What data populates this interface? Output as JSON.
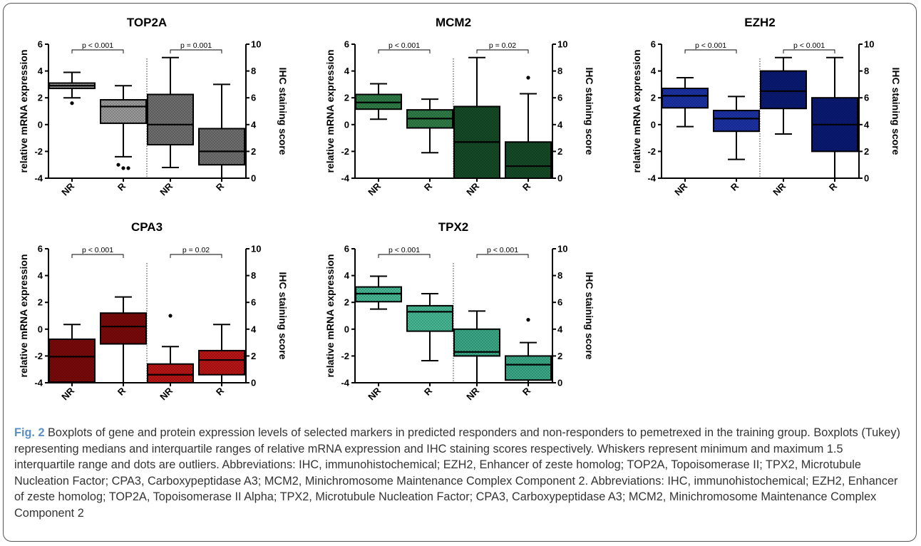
{
  "chart_data": [
    {
      "type": "box",
      "title": "TOP2A",
      "color": "#7a7a7a",
      "pattern_left": "#9a9a9a",
      "pattern_right": "#6e6e6e",
      "ylabel_left": "relative mRNA expression",
      "ylabel_right": "IHC staining score",
      "ylim_left": [
        -4,
        6
      ],
      "ylim_right": [
        0,
        10
      ],
      "yticks_left": [
        "-4",
        "-2",
        "0",
        "2",
        "4",
        "6"
      ],
      "yticks_right": [
        "0",
        "2",
        "4",
        "6",
        "8",
        "10"
      ],
      "categories": [
        "NR",
        "R",
        "NR",
        "R"
      ],
      "pvalues": [
        "p < 0.001",
        "p = 0.001"
      ],
      "boxes": [
        {
          "axis": "left",
          "min": 2.0,
          "q1": 2.7,
          "median": 2.9,
          "q3": 3.1,
          "max": 3.9,
          "outliers": [
            1.6
          ]
        },
        {
          "axis": "left",
          "min": -2.4,
          "q1": 0.1,
          "median": 1.35,
          "q3": 1.85,
          "max": 2.9,
          "outliers": [
            -3.0,
            -3.25,
            -3.25
          ]
        },
        {
          "axis": "right",
          "min": 0.8,
          "q1": 2.5,
          "median": 4.0,
          "q3": 6.25,
          "max": 9.0,
          "outliers": []
        },
        {
          "axis": "right",
          "min": 0.0,
          "q1": 1.0,
          "median": 2.0,
          "q3": 3.7,
          "max": 7.0,
          "outliers": []
        }
      ]
    },
    {
      "type": "box",
      "title": "MCM2",
      "color": "#1a5e32",
      "pattern_left": "#2f7c47",
      "pattern_right": "#144a26",
      "ylabel_left": "relative mRNA expression",
      "ylabel_right": "IHC staining score",
      "ylim_left": [
        -4,
        6
      ],
      "ylim_right": [
        0,
        10
      ],
      "yticks_left": [
        "-4",
        "-2",
        "0",
        "2",
        "4",
        "6"
      ],
      "yticks_right": [
        "0",
        "2",
        "4",
        "6",
        "8",
        "10"
      ],
      "categories": [
        "NR",
        "R",
        "NR",
        "R"
      ],
      "pvalues": [
        "p < 0.001",
        "p = 0.02"
      ],
      "boxes": [
        {
          "axis": "left",
          "min": 0.4,
          "q1": 1.15,
          "median": 1.65,
          "q3": 2.25,
          "max": 3.05,
          "outliers": []
        },
        {
          "axis": "left",
          "min": -2.1,
          "q1": -0.25,
          "median": 0.45,
          "q3": 1.1,
          "max": 1.9,
          "outliers": []
        },
        {
          "axis": "right",
          "min": 0.0,
          "q1": 0.0,
          "median": 2.7,
          "q3": 5.35,
          "max": 9.0,
          "outliers": []
        },
        {
          "axis": "right",
          "min": 0.0,
          "q1": 0.0,
          "median": 0.9,
          "q3": 2.7,
          "max": 6.3,
          "outliers": [
            7.5
          ]
        }
      ]
    },
    {
      "type": "box",
      "title": "EZH2",
      "color": "#0b1f86",
      "pattern_left": "#1c31a4",
      "pattern_right": "#0a1a72",
      "ylabel_left": "relative mRNA expression",
      "ylabel_right": "IHC staining score",
      "ylim_left": [
        -4,
        6
      ],
      "ylim_right": [
        0,
        10
      ],
      "yticks_left": [
        "-4",
        "-2",
        "0",
        "2",
        "4",
        "6"
      ],
      "yticks_right": [
        "0",
        "2",
        "4",
        "6",
        "8",
        "10"
      ],
      "categories": [
        "NR",
        "R",
        "NR",
        "R"
      ],
      "pvalues": [
        "p < 0.001",
        "p < 0.001"
      ],
      "boxes": [
        {
          "axis": "left",
          "min": -0.15,
          "q1": 1.25,
          "median": 2.15,
          "q3": 2.7,
          "max": 3.5,
          "outliers": []
        },
        {
          "axis": "left",
          "min": -2.6,
          "q1": -0.5,
          "median": 0.45,
          "q3": 1.05,
          "max": 2.1,
          "outliers": []
        },
        {
          "axis": "right",
          "min": 3.3,
          "q1": 5.2,
          "median": 6.5,
          "q3": 8.0,
          "max": 9.0,
          "outliers": []
        },
        {
          "axis": "right",
          "min": 0.0,
          "q1": 2.0,
          "median": 4.0,
          "q3": 6.0,
          "max": 9.0,
          "outliers": []
        }
      ]
    },
    {
      "type": "box",
      "title": "CPA3",
      "color": "#a30c0c",
      "pattern_left": "#7a0a0a",
      "pattern_right": "#b81515",
      "ylabel_left": "relative mRNA expression",
      "ylabel_right": "IHC staining score",
      "ylim_left": [
        -4,
        6
      ],
      "ylim_right": [
        0,
        10
      ],
      "yticks_left": [
        "-4",
        "-2",
        "0",
        "2",
        "4",
        "6"
      ],
      "yticks_right": [
        "0",
        "2",
        "4",
        "6",
        "8",
        "10"
      ],
      "categories": [
        "NR",
        "R",
        "NR",
        "R"
      ],
      "pvalues": [
        "p < 0.001",
        "p = 0.02"
      ],
      "boxes": [
        {
          "axis": "left",
          "min": -3.95,
          "q1": -3.95,
          "median": -2.05,
          "q3": -0.75,
          "max": 0.35,
          "outliers": []
        },
        {
          "axis": "left",
          "min": -4.0,
          "q1": -1.1,
          "median": 0.2,
          "q3": 1.2,
          "max": 2.4,
          "outliers": []
        },
        {
          "axis": "right",
          "min": 0.0,
          "q1": 0.0,
          "median": 0.6,
          "q3": 1.4,
          "max": 2.7,
          "outliers": [
            5.0
          ]
        },
        {
          "axis": "right",
          "min": 0.0,
          "q1": 0.6,
          "median": 1.7,
          "q3": 2.4,
          "max": 4.35,
          "outliers": []
        }
      ]
    },
    {
      "type": "box",
      "title": "TPX2",
      "color": "#3aaf8c",
      "pattern_left": "#46b894",
      "pattern_right": "#3aa886",
      "ylabel_left": "relative mRNA expression",
      "ylabel_right": "IHC staining score",
      "ylim_left": [
        -4,
        6
      ],
      "ylim_right": [
        0,
        10
      ],
      "yticks_left": [
        "-4",
        "-2",
        "0",
        "2",
        "4",
        "6"
      ],
      "yticks_right": [
        "0",
        "2",
        "4",
        "6",
        "8",
        "10"
      ],
      "categories": [
        "NR",
        "R",
        "NR",
        "R"
      ],
      "pvalues": [
        "p < 0.001",
        "p < 0.001"
      ],
      "boxes": [
        {
          "axis": "left",
          "min": 1.5,
          "q1": 2.05,
          "median": 2.65,
          "q3": 3.15,
          "max": 3.95,
          "outliers": []
        },
        {
          "axis": "left",
          "min": -2.35,
          "q1": -0.15,
          "median": 1.3,
          "q3": 1.75,
          "max": 2.65,
          "outliers": []
        },
        {
          "axis": "right",
          "min": 0.0,
          "q1": 2.0,
          "median": 2.3,
          "q3": 4.0,
          "max": 5.35,
          "outliers": []
        },
        {
          "axis": "right",
          "min": 0.0,
          "q1": 0.2,
          "median": 1.35,
          "q3": 2.0,
          "max": 3.0,
          "outliers": [
            4.7
          ]
        }
      ]
    }
  ],
  "caption": {
    "label": "Fig. 2",
    "text": " Boxplots of gene and protein expression levels of selected markers in predicted responders and non-responders to pemetrexed in the training group. Boxplots (Tukey) representing medians and interquartile ranges of relative mRNA expression and IHC staining scores respectively. Whiskers represent minimum and maximum 1.5 interquartile range and dots are outliers. Abbreviations: IHC, immunohistochemical; EZH2, Enhancer of zeste homolog; TOP2A, Topoisomerase II; TPX2, Microtubule Nucleation Factor; CPA3, Carboxypeptidase A3; MCM2, Minichromosome Maintenance Complex Component 2. Abbreviations: IHC, immunohistochemical; EZH2, Enhancer of zeste homolog; TOP2A, Topoisomerase II Alpha; TPX2, Microtubule Nucleation Factor; CPA3, Carboxypeptidase A3; MCM2, Minichromosome Maintenance Complex Component 2"
  }
}
